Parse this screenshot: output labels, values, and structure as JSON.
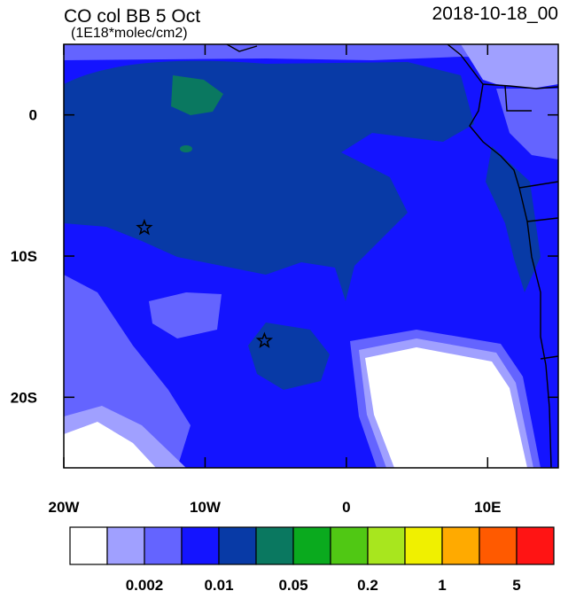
{
  "header": {
    "title": "CO col BB 5 Oct",
    "subtitle": "(1E18*molec/cm2)",
    "date": "2018-10-18_00"
  },
  "map": {
    "xlim": [
      -20,
      15
    ],
    "ylim": [
      -25,
      5
    ],
    "xticks": [
      {
        "value": -20,
        "label": "20W"
      },
      {
        "value": -10,
        "label": "10W"
      },
      0,
      {
        "value": 10,
        "label": "10E"
      }
    ],
    "yticks": [
      0,
      {
        "value": -10,
        "label": "10S"
      },
      {
        "value": -20,
        "label": "20S"
      }
    ],
    "markers": [
      {
        "lon": -14.3,
        "lat": -8
      },
      {
        "lon": -5.8,
        "lat": -16
      }
    ]
  },
  "colorbar": {
    "colors": [
      "#ffffff",
      "#a0a0ff",
      "#6464ff",
      "#1414ff",
      "#083aa6",
      "#0a7860",
      "#0aaa1e",
      "#50c814",
      "#a8e61e",
      "#f0f000",
      "#ffaa00",
      "#ff5a00",
      "#ff1414"
    ],
    "labels": [
      "0.002",
      "0.01",
      "0.05",
      "0.2",
      "1",
      "5"
    ]
  }
}
